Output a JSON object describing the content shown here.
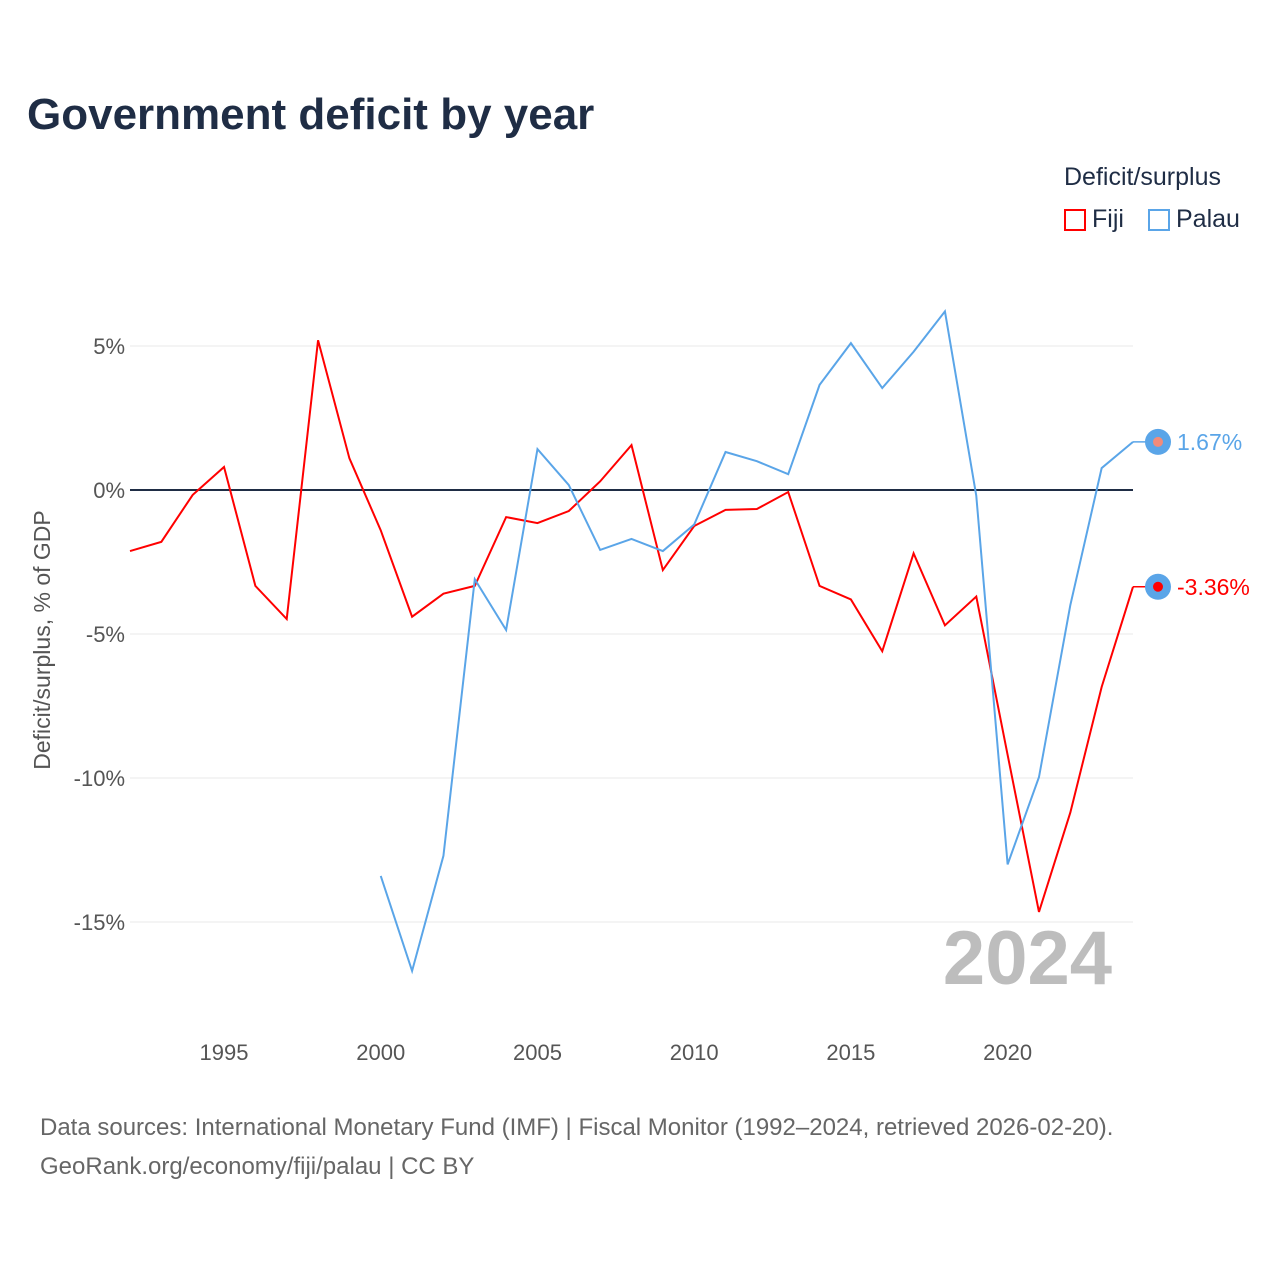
{
  "chart_data": {
    "type": "line",
    "title": "Government deficit by year",
    "xlabel": "",
    "ylabel": "Deficit/surplus, % of GDP",
    "xlim": [
      1992,
      2024
    ],
    "ylim": [
      -17.5,
      7
    ],
    "x_ticks": [
      1995,
      2000,
      2005,
      2010,
      2015,
      2020
    ],
    "y_ticks": [
      {
        "v": 5,
        "label": "5%"
      },
      {
        "v": 0,
        "label": "0%"
      },
      {
        "v": -5,
        "label": "-5%"
      },
      {
        "v": -10,
        "label": "-10%"
      },
      {
        "v": -15,
        "label": "-15%"
      }
    ],
    "grid": true,
    "legend_title": "Deficit/surplus",
    "legend_position": "top-right",
    "year_watermark": "2024",
    "series": [
      {
        "name": "Fiji",
        "color": "#ff0000",
        "end_label": "-3.36%",
        "x": [
          1992,
          1993,
          1994,
          1995,
          1996,
          1997,
          1998,
          1999,
          2000,
          2001,
          2002,
          2003,
          2004,
          2005,
          2006,
          2007,
          2008,
          2009,
          2010,
          2011,
          2012,
          2013,
          2014,
          2015,
          2016,
          2017,
          2018,
          2019,
          2020,
          2021,
          2022,
          2023,
          2024
        ],
        "values": [
          -2.12,
          -1.8,
          -0.17,
          0.8,
          -3.33,
          -4.48,
          5.2,
          1.1,
          -1.4,
          -4.4,
          -3.6,
          -3.33,
          -0.94,
          -1.15,
          -0.73,
          0.3,
          1.56,
          -2.78,
          -1.25,
          -0.69,
          -0.66,
          -0.07,
          -3.33,
          -3.8,
          -5.6,
          -2.2,
          -4.7,
          -3.7,
          -9.2,
          -14.65,
          -11.2,
          -6.84,
          -3.36
        ]
      },
      {
        "name": "Palau",
        "color": "#5aa5e8",
        "end_label": "1.67%",
        "x": [
          2000,
          2001,
          2002,
          2003,
          2004,
          2005,
          2006,
          2007,
          2008,
          2009,
          2010,
          2011,
          2012,
          2013,
          2014,
          2015,
          2016,
          2017,
          2018,
          2019,
          2020,
          2021,
          2022,
          2023,
          2024
        ],
        "values": [
          -13.4,
          -16.7,
          -12.7,
          -3.1,
          -4.86,
          1.42,
          0.17,
          -2.08,
          -1.7,
          -2.12,
          -1.2,
          1.32,
          1.0,
          0.55,
          3.65,
          5.1,
          3.54,
          4.8,
          6.2,
          -0.2,
          -13.0,
          -9.97,
          -4.0,
          0.76,
          1.67
        ]
      }
    ]
  },
  "source": {
    "line1": "Data sources: International Monetary Fund (IMF) | Fiscal Monitor (1992–2024, retrieved 2026-02-20).",
    "line2": "GeoRank.org/economy/fiji/palau | CC BY"
  }
}
